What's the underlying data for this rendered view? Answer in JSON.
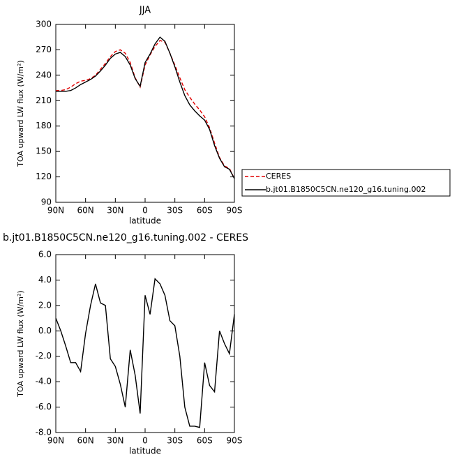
{
  "chart_data": [
    {
      "type": "line",
      "title": "JJA",
      "xlabel": "latitude",
      "ylabel": "TOA upward LW flux (W/m²)",
      "x": [
        90,
        85,
        80,
        75,
        70,
        65,
        60,
        55,
        50,
        45,
        40,
        35,
        30,
        25,
        20,
        15,
        10,
        5,
        0,
        -5,
        -10,
        -15,
        -20,
        -25,
        -30,
        -35,
        -40,
        -45,
        -50,
        -55,
        -60,
        -65,
        -70,
        -75,
        -80,
        -85,
        -90
      ],
      "series": [
        {
          "name": "CERES",
          "color": "#e00000",
          "dashed": true,
          "values": [
            222,
            222,
            223,
            226,
            230,
            233,
            234,
            236,
            240,
            247,
            254,
            262,
            268,
            270,
            266,
            255,
            237,
            226,
            252,
            264,
            274,
            281,
            279,
            266,
            252,
            237,
            223,
            214,
            206,
            199,
            191,
            178,
            160,
            143,
            133,
            130,
            118
          ]
        },
        {
          "name": "b.jt01.B1850C5CN.ne120_g16.tuning.002",
          "color": "#000000",
          "dashed": false,
          "values": [
            221,
            221,
            221,
            222,
            225,
            229,
            232,
            235,
            239,
            245,
            252,
            260,
            265,
            267,
            262,
            252,
            236,
            227,
            255,
            265,
            277,
            285,
            280,
            266,
            250,
            232,
            216,
            205,
            198,
            192,
            187,
            176,
            157,
            142,
            132,
            129,
            118
          ]
        }
      ],
      "xlim": [
        90,
        -90
      ],
      "xticks": [
        {
          "value": 90,
          "label": "90N"
        },
        {
          "value": 60,
          "label": "60N"
        },
        {
          "value": 30,
          "label": "30N"
        },
        0,
        {
          "value": -30,
          "label": "30S"
        },
        {
          "value": -60,
          "label": "60S"
        },
        {
          "value": -90,
          "label": "90S"
        }
      ],
      "ylim": [
        90,
        300
      ],
      "yticks": [
        90,
        120,
        150,
        180,
        210,
        240,
        270,
        300
      ],
      "legend": "right"
    },
    {
      "type": "line",
      "title": "b.jt01.B1850C5CN.ne120_g16.tuning.002 - CERES",
      "xlabel": "latitude",
      "ylabel": "TOA upward LW flux (W/m²)",
      "x": [
        90,
        85,
        80,
        75,
        70,
        65,
        60,
        55,
        50,
        45,
        40,
        35,
        30,
        25,
        20,
        15,
        10,
        5,
        0,
        -5,
        -10,
        -15,
        -20,
        -25,
        -30,
        -35,
        -40,
        -45,
        -50,
        -55,
        -60,
        -65,
        -70,
        -75,
        -80,
        -85,
        -90
      ],
      "series": [
        {
          "color": "#000000",
          "dashed": false,
          "values": [
            1.0,
            0.0,
            -1.2,
            -2.5,
            -2.5,
            -3.2,
            -0.2,
            2.0,
            3.7,
            2.2,
            2.0,
            -2.2,
            -2.8,
            -4.2,
            -6.0,
            -1.5,
            -3.5,
            -6.5,
            2.8,
            1.3,
            4.1,
            3.7,
            2.8,
            0.8,
            0.4,
            -2.0,
            -6.0,
            -7.5,
            -7.5,
            -7.6,
            -2.5,
            -4.3,
            -4.8,
            0.0,
            -1.0,
            -1.8,
            1.3
          ]
        }
      ],
      "xlim": [
        90,
        -90
      ],
      "xticks": [
        {
          "value": 90,
          "label": "90N"
        },
        {
          "value": 60,
          "label": "60N"
        },
        {
          "value": 30,
          "label": "30N"
        },
        0,
        {
          "value": -30,
          "label": "30S"
        },
        {
          "value": -60,
          "label": "60S"
        },
        {
          "value": -90,
          "label": "90S"
        }
      ],
      "ylim": [
        -8,
        6
      ],
      "yticks": [
        {
          "value": -8,
          "label": "-8.0"
        },
        {
          "value": -6,
          "label": "-6.0"
        },
        {
          "value": -4,
          "label": "-4.0"
        },
        {
          "value": -2,
          "label": "-2.0"
        },
        {
          "value": 0,
          "label": "0.0"
        },
        {
          "value": 2,
          "label": "2.0"
        },
        {
          "value": 4,
          "label": "4.0"
        },
        {
          "value": 6,
          "label": "6.0"
        }
      ]
    }
  ]
}
